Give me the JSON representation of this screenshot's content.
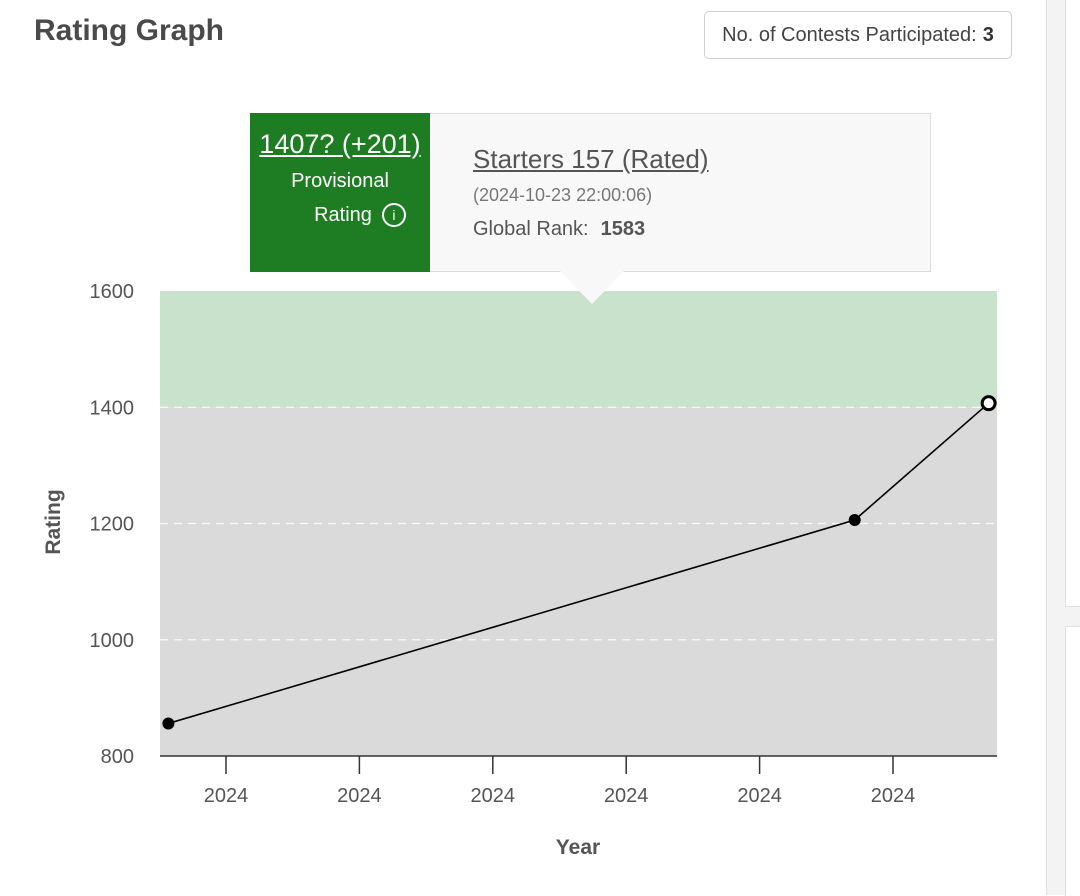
{
  "header": {
    "title": "Rating Graph",
    "contests_label": "No. of Contests Participated:",
    "contests_count": "3"
  },
  "tooltip": {
    "rating_change": "1407? (+201)",
    "provisional_label": "Provisional",
    "rating_label": "Rating",
    "info_icon": "info-icon",
    "contest_name": "Starters 157 (Rated)",
    "date": "(2024-10-23 22:00:06)",
    "rank_label": "Global Rank:",
    "rank_value": "1583"
  },
  "chart_data": {
    "type": "line",
    "xlabel": "Year",
    "ylabel": "Rating",
    "ylim": [
      800,
      1600
    ],
    "yticks": [
      800,
      1000,
      1200,
      1400,
      1600
    ],
    "xtick_labels": [
      "2024",
      "2024",
      "2024",
      "2024",
      "2024",
      "2024"
    ],
    "bands": [
      {
        "from": 800,
        "to": 1400,
        "color": "#dadada"
      },
      {
        "from": 1400,
        "to": 1600,
        "color": "#c8e2cc"
      }
    ],
    "series": [
      {
        "name": "Rating",
        "points": [
          {
            "x": 0.01,
            "y": 856,
            "provisional": false
          },
          {
            "x": 0.83,
            "y": 1206,
            "provisional": false
          },
          {
            "x": 0.99,
            "y": 1407,
            "provisional": true
          }
        ]
      }
    ]
  },
  "colors": {
    "provisional_green": "#1e7d22",
    "band_gray": "#dadada",
    "band_green": "#c8e2cc"
  }
}
